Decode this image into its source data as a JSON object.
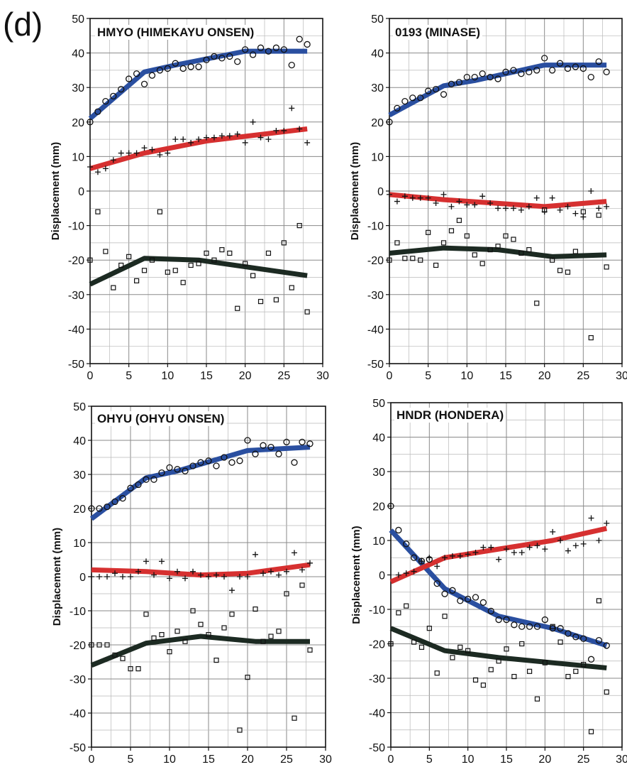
{
  "panel_label": "(d)",
  "chart_data": [
    {
      "type": "scatter",
      "title": "HMYO (HIMEKAYU ONSEN)",
      "xlabel": "",
      "ylabel": "Displacement (mm)",
      "xlim": [
        0,
        30
      ],
      "ylim": [
        -50,
        50
      ],
      "xticks": [
        0,
        5,
        10,
        15,
        20,
        25,
        30
      ],
      "yticks": [
        -50,
        -40,
        -30,
        -20,
        -10,
        0,
        10,
        20,
        30,
        40,
        50
      ],
      "grid": true,
      "series": [
        {
          "marker": "circle",
          "color": "#111111",
          "x": [
            0,
            1,
            2,
            3,
            4,
            5,
            6,
            7,
            8,
            9,
            10,
            11,
            12,
            13,
            14,
            15,
            16,
            17,
            18,
            19,
            20,
            21,
            22,
            23,
            24,
            25,
            26,
            27,
            28
          ],
          "y": [
            20,
            23,
            26,
            27.5,
            29.5,
            32.5,
            34,
            31,
            33.5,
            35,
            35.5,
            37,
            35.5,
            36,
            36,
            38,
            39,
            38.5,
            39,
            37.5,
            41,
            39.5,
            41.5,
            40.5,
            41.5,
            41,
            36.5,
            44,
            42.5
          ]
        },
        {
          "marker": "plus",
          "color": "#111111",
          "x": [
            0,
            1,
            2,
            3,
            4,
            5,
            6,
            7,
            8,
            9,
            10,
            11,
            12,
            13,
            14,
            15,
            16,
            17,
            18,
            19,
            20,
            21,
            22,
            23,
            24,
            25,
            26,
            27,
            28
          ],
          "y": [
            7,
            5.5,
            6.5,
            9,
            11,
            11,
            11,
            12.5,
            12,
            10.5,
            11,
            15,
            15,
            14,
            15,
            15.5,
            15.5,
            16,
            16,
            16.5,
            14,
            20,
            15.5,
            15,
            17.5,
            17.5,
            24,
            18,
            14
          ]
        },
        {
          "marker": "square",
          "color": "#111111",
          "x": [
            0,
            1,
            2,
            3,
            4,
            5,
            6,
            7,
            8,
            9,
            10,
            11,
            12,
            13,
            14,
            15,
            16,
            17,
            18,
            19,
            20,
            21,
            22,
            23,
            24,
            25,
            26,
            27,
            28
          ],
          "y": [
            -20,
            -6,
            -17.5,
            -28,
            -21.5,
            -19,
            -26,
            -23,
            -20,
            -6,
            -23.5,
            -23,
            -26.5,
            -21.5,
            -21,
            -18,
            -20,
            -17,
            -18,
            -34,
            -21,
            -24.5,
            -32,
            -18,
            -31.5,
            -15,
            -28,
            -10,
            -35
          ]
        },
        {
          "marker": "line",
          "color": "#2a4fa0",
          "x": [
            0,
            7,
            11,
            20,
            28
          ],
          "y": [
            21,
            34.5,
            36.5,
            40.5,
            40.5
          ]
        },
        {
          "marker": "line",
          "color": "#d63030",
          "x": [
            0,
            7,
            15,
            28
          ],
          "y": [
            6.5,
            11,
            14.5,
            18
          ]
        },
        {
          "marker": "line",
          "color": "#1c2a22",
          "x": [
            0,
            7,
            14,
            28
          ],
          "y": [
            -27,
            -19.5,
            -20,
            -24.5
          ]
        }
      ]
    },
    {
      "type": "scatter",
      "title": "0193 (MINASE)",
      "xlabel": "",
      "ylabel": "Displacement (mm)",
      "xlim": [
        0,
        30
      ],
      "ylim": [
        -50,
        50
      ],
      "xticks": [
        0,
        5,
        10,
        15,
        20,
        25,
        30
      ],
      "yticks": [
        -50,
        -40,
        -30,
        -20,
        -10,
        0,
        10,
        20,
        30,
        40,
        50
      ],
      "grid": true,
      "series": [
        {
          "marker": "circle",
          "color": "#111111",
          "x": [
            0,
            1,
            2,
            3,
            4,
            5,
            6,
            7,
            8,
            9,
            10,
            11,
            12,
            13,
            14,
            15,
            16,
            17,
            18,
            19,
            20,
            21,
            22,
            23,
            24,
            25,
            26,
            27,
            28
          ],
          "y": [
            20,
            24,
            26,
            27,
            27,
            29,
            29.5,
            28,
            31,
            31.5,
            33,
            33,
            34,
            33,
            32.5,
            34.5,
            35,
            34,
            34.5,
            35,
            38.5,
            35,
            37,
            35.5,
            36,
            35.5,
            33,
            37.5,
            34.5
          ]
        },
        {
          "marker": "plus",
          "color": "#111111",
          "x": [
            0,
            1,
            2,
            3,
            4,
            5,
            6,
            7,
            8,
            9,
            10,
            11,
            12,
            13,
            14,
            15,
            16,
            17,
            18,
            19,
            20,
            21,
            22,
            23,
            24,
            25,
            26,
            27,
            28
          ],
          "y": [
            -1,
            -3,
            -1.5,
            -2,
            -2,
            -2,
            -3.5,
            -1,
            -4.5,
            -3,
            -4,
            -4,
            -1.5,
            -3.5,
            -5,
            -5,
            -5,
            -5.5,
            -4.5,
            -2,
            -6,
            -2,
            -5.5,
            -4.5,
            -6.5,
            -7.5,
            0,
            -5,
            -4.5
          ]
        },
        {
          "marker": "square",
          "color": "#111111",
          "x": [
            0,
            1,
            2,
            3,
            4,
            5,
            6,
            7,
            8,
            9,
            10,
            11,
            12,
            13,
            14,
            15,
            16,
            17,
            18,
            19,
            20,
            21,
            22,
            23,
            24,
            25,
            26,
            27,
            28
          ],
          "y": [
            -20,
            -15,
            -19.5,
            -19.5,
            -20,
            -12,
            -21.5,
            -15,
            -11.5,
            -8.5,
            -13,
            -18.5,
            -21,
            -17,
            -16,
            -13,
            -14,
            -18,
            -17,
            -32.5,
            -5.5,
            -20,
            -23,
            -23.5,
            -17.5,
            -6,
            -42.5,
            -7,
            -22
          ]
        },
        {
          "marker": "line",
          "color": "#2a4fa0",
          "x": [
            0,
            7,
            11,
            20,
            28
          ],
          "y": [
            22,
            30.5,
            32,
            36.5,
            36.5
          ]
        },
        {
          "marker": "line",
          "color": "#d63030",
          "x": [
            0,
            7,
            20,
            28
          ],
          "y": [
            -1,
            -2.5,
            -4.5,
            -3
          ]
        },
        {
          "marker": "line",
          "color": "#1c2a22",
          "x": [
            0,
            7,
            14,
            21,
            28
          ],
          "y": [
            -18,
            -16.5,
            -17,
            -19,
            -18.5
          ]
        }
      ]
    },
    {
      "type": "scatter",
      "title": "OHYU (OHYU ONSEN)",
      "xlabel": "",
      "ylabel": "Displacement (mm)",
      "xlim": [
        0,
        30
      ],
      "ylim": [
        -50,
        50
      ],
      "xticks": [
        0,
        5,
        10,
        15,
        20,
        25,
        30
      ],
      "yticks": [
        -50,
        -40,
        -30,
        -20,
        -10,
        0,
        10,
        20,
        30,
        40,
        50
      ],
      "grid": true,
      "series": [
        {
          "marker": "circle",
          "color": "#111111",
          "x": [
            0,
            1,
            2,
            3,
            4,
            5,
            6,
            7,
            8,
            9,
            10,
            11,
            12,
            13,
            14,
            15,
            16,
            17,
            18,
            19,
            20,
            21,
            22,
            23,
            24,
            25,
            26,
            27,
            28
          ],
          "y": [
            20,
            20,
            20.5,
            22,
            23,
            26,
            27,
            28.5,
            28.5,
            30.5,
            32,
            31.5,
            31,
            32.5,
            33.5,
            34,
            32.5,
            35,
            33.5,
            34,
            40,
            36,
            38.5,
            38,
            36,
            39.5,
            33.5,
            39.5,
            39
          ]
        },
        {
          "marker": "plus",
          "color": "#111111",
          "x": [
            0,
            1,
            2,
            3,
            4,
            5,
            6,
            7,
            8,
            9,
            10,
            11,
            12,
            13,
            14,
            15,
            16,
            17,
            18,
            19,
            20,
            21,
            22,
            23,
            24,
            25,
            26,
            27,
            28
          ],
          "y": [
            0,
            0,
            0,
            1,
            0,
            0,
            1.5,
            4.5,
            0.5,
            4.5,
            -0.5,
            1.5,
            -0.5,
            1.5,
            0.5,
            0,
            0.5,
            0,
            -4,
            0,
            0,
            6.5,
            1,
            1.5,
            0.5,
            1.5,
            7,
            2,
            4
          ]
        },
        {
          "marker": "square",
          "color": "#111111",
          "x": [
            0,
            1,
            2,
            3,
            4,
            5,
            6,
            7,
            8,
            9,
            10,
            11,
            12,
            13,
            14,
            15,
            16,
            17,
            18,
            19,
            20,
            21,
            22,
            23,
            24,
            25,
            26,
            27,
            28
          ],
          "y": [
            -20,
            -20,
            -20,
            -23,
            -24,
            -27,
            -27,
            -11,
            -18,
            -17,
            -22,
            -16,
            -19,
            -10,
            -14,
            -17,
            -24.5,
            -15,
            -11,
            -45,
            -29.5,
            -9.5,
            -19,
            -17.5,
            -16,
            -5,
            -41.5,
            -2.5,
            -21.5
          ]
        },
        {
          "marker": "line",
          "color": "#2a4fa0",
          "x": [
            0,
            7,
            11,
            20,
            28
          ],
          "y": [
            17,
            29,
            31,
            37,
            38
          ]
        },
        {
          "marker": "line",
          "color": "#d63030",
          "x": [
            0,
            7,
            14,
            20,
            28
          ],
          "y": [
            2,
            1.5,
            0.5,
            1,
            3.5
          ]
        },
        {
          "marker": "line",
          "color": "#1c2a22",
          "x": [
            0,
            7,
            14,
            21,
            28
          ],
          "y": [
            -26,
            -19.5,
            -17.5,
            -19,
            -19
          ]
        }
      ]
    },
    {
      "type": "scatter",
      "title": "HNDR (HONDERA)",
      "xlabel": "",
      "ylabel": "Displacement (mm)",
      "xlim": [
        0,
        30
      ],
      "ylim": [
        -50,
        50
      ],
      "xticks": [
        0,
        5,
        10,
        15,
        20,
        25,
        30
      ],
      "yticks": [
        -50,
        -40,
        -30,
        -20,
        -10,
        0,
        10,
        20,
        30,
        40,
        50
      ],
      "grid": true,
      "series": [
        {
          "marker": "circle",
          "color": "#111111",
          "x": [
            0,
            1,
            2,
            3,
            4,
            5,
            6,
            7,
            8,
            9,
            10,
            11,
            12,
            13,
            14,
            15,
            16,
            17,
            18,
            19,
            20,
            21,
            22,
            23,
            24,
            25,
            26,
            27,
            28
          ],
          "y": [
            20,
            13,
            9,
            5,
            4,
            4.5,
            -2.5,
            -5.5,
            -4.5,
            -7.5,
            -7,
            -6.5,
            -8,
            -10.5,
            -13,
            -13,
            -14.5,
            -15,
            -15,
            -15,
            -13,
            -15.5,
            -15.5,
            -17,
            -18,
            -18.5,
            -24.5,
            -19,
            -20.5
          ]
        },
        {
          "marker": "plus",
          "color": "#111111",
          "x": [
            0,
            1,
            2,
            3,
            4,
            5,
            6,
            7,
            8,
            9,
            10,
            11,
            12,
            13,
            14,
            15,
            16,
            17,
            18,
            19,
            20,
            21,
            22,
            23,
            24,
            25,
            26,
            27,
            28
          ],
          "y": [
            -20,
            0,
            0.5,
            1,
            4,
            5,
            2.5,
            5,
            5.5,
            5.5,
            6,
            6.5,
            8,
            8,
            4.5,
            7.5,
            6.5,
            6.5,
            8,
            8.5,
            7.5,
            12.5,
            10,
            7,
            8.5,
            9,
            16.5,
            10,
            15
          ]
        },
        {
          "marker": "square",
          "color": "#111111",
          "x": [
            0,
            1,
            2,
            3,
            4,
            5,
            6,
            7,
            8,
            9,
            10,
            11,
            12,
            13,
            14,
            15,
            16,
            17,
            18,
            19,
            20,
            21,
            22,
            23,
            24,
            25,
            26,
            27,
            28
          ],
          "y": [
            -20,
            -11,
            -9,
            -19.5,
            -21,
            -15.5,
            -28.5,
            -12,
            -24,
            -21,
            -22,
            -30.5,
            -32,
            -27.5,
            -25,
            -21.5,
            -29.5,
            -20,
            -28,
            -36,
            -25.5,
            -15,
            -19.5,
            -29.5,
            -28,
            -26,
            -45.5,
            -7.5,
            -34
          ]
        },
        {
          "marker": "line",
          "color": "#2a4fa0",
          "x": [
            0,
            7,
            14,
            21,
            28
          ],
          "y": [
            13,
            -4,
            -12,
            -15.5,
            -20.5
          ]
        },
        {
          "marker": "line",
          "color": "#d63030",
          "x": [
            0,
            7,
            14,
            21,
            28
          ],
          "y": [
            -2,
            5,
            7.5,
            10,
            13.5
          ]
        },
        {
          "marker": "line",
          "color": "#1c2a22",
          "x": [
            0,
            7,
            14,
            21,
            28
          ],
          "y": [
            -15.5,
            -22,
            -24,
            -25.5,
            -27
          ]
        }
      ]
    }
  ]
}
